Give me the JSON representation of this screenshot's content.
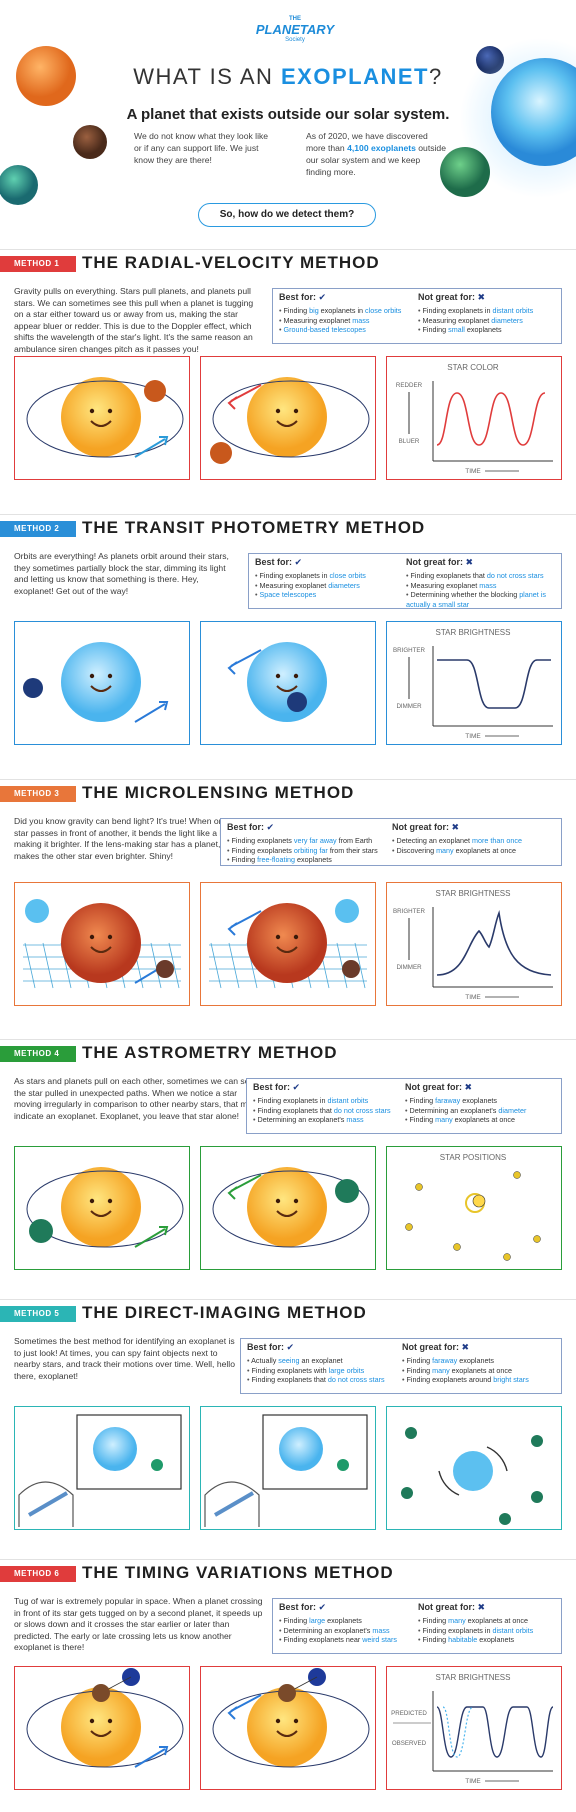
{
  "header": {
    "logo_top": "THE",
    "logo_main": "PLANETARY",
    "logo_sub": "Society",
    "title_prefix": "WHAT IS AN ",
    "title_highlight": "EXOPLANET",
    "title_suffix": "?",
    "subtitle": "A planet that exists outside our solar system.",
    "intro_left": "We do not know what they look like or if any can support life. We just know they are there!",
    "intro_right_a": "As of 2020, we have discovered more than ",
    "intro_right_hl": "4,100 exoplanets",
    "intro_right_b": " outside our solar system and we keep finding more.",
    "question": "So, how do we detect them?"
  },
  "colors": {
    "blue": "#1a8fe0",
    "red": "#e03c3c",
    "green": "#2a9d3a",
    "orange": "#e8763a",
    "teal": "#2bb5b5"
  },
  "methods": [
    {
      "tag": "METHOD 1",
      "title": "THE RADIAL-VELOCITY METHOD",
      "description": "Gravity pulls on everything. Stars pull planets, and planets pull stars. We can sometimes see this pull when a planet is tugging on a star either toward us or away from us, making the star appear bluer or redder. This is due to the Doppler effect, which shifts the wavelength of the star's light. It's the same reason an ambulance siren changes pitch as it passes you!",
      "best_label": "Best for:",
      "best": [
        {
          "a": "Finding ",
          "h": "big",
          "b": " exoplanets in ",
          "h2": "close orbits",
          "c": ""
        },
        {
          "a": "Measuring exoplanet ",
          "h": "mass",
          "b": "",
          "h2": "",
          "c": ""
        },
        {
          "a": "",
          "h": "Ground-based telescopes",
          "b": "",
          "h2": "",
          "c": ""
        }
      ],
      "not_label": "Not great for:",
      "not": [
        {
          "a": "Finding exoplanets in ",
          "h": "distant orbits",
          "b": ""
        },
        {
          "a": "Measuring exoplanet ",
          "h": "diameters",
          "b": ""
        },
        {
          "a": "Finding ",
          "h": "small",
          "b": " exoplanets"
        }
      ],
      "chart": {
        "title": "STAR COLOR",
        "y_top": "REDDER",
        "y_bottom": "BLUER",
        "x": "TIME"
      }
    },
    {
      "tag": "METHOD 2",
      "title": "THE TRANSIT PHOTOMETRY METHOD",
      "description": "Orbits are everything! As planets orbit around their stars, they sometimes partially block the star, dimming its light and letting us know that something is there. Hey, exoplanet! Get out of the way!",
      "best_label": "Best for:",
      "best": [
        {
          "a": "Finding exoplanets in ",
          "h": "close orbits",
          "b": "",
          "h2": "",
          "c": ""
        },
        {
          "a": "Measuring exoplanet ",
          "h": "diameters",
          "b": "",
          "h2": "",
          "c": ""
        },
        {
          "a": "",
          "h": "Space telescopes",
          "b": "",
          "h2": "",
          "c": ""
        }
      ],
      "not_label": "Not great for:",
      "not": [
        {
          "a": "Finding exoplanets that ",
          "h": "do not cross stars",
          "b": ""
        },
        {
          "a": "Measuring exoplanet ",
          "h": "mass",
          "b": ""
        },
        {
          "a": "Determining whether the blocking ",
          "h": "planet is actually a small star",
          "b": ""
        }
      ],
      "chart": {
        "title": "STAR BRIGHTNESS",
        "y_top": "BRIGHTER",
        "y_bottom": "DIMMER",
        "x": "TIME"
      }
    },
    {
      "tag": "METHOD 3",
      "title": "THE MICROLENSING METHOD",
      "description": "Did you know gravity can bend light? It's true! When one star passes in front of another, it bends the light like a lens, making it brighter. If the lens-making star has a planet, it makes the other star even brighter. Shiny!",
      "best_label": "Best for:",
      "best": [
        {
          "a": "Finding exoplanets ",
          "h": "very far away",
          "b": " from Earth",
          "h2": "",
          "c": ""
        },
        {
          "a": "Finding exoplanets ",
          "h": "orbiting far",
          "b": " from their stars",
          "h2": "",
          "c": ""
        },
        {
          "a": "Finding ",
          "h": "free-floating",
          "b": " exoplanets",
          "h2": "",
          "c": ""
        }
      ],
      "not_label": "Not great for:",
      "not": [
        {
          "a": "Detecting an exoplanet ",
          "h": "more than once",
          "b": ""
        },
        {
          "a": "Discovering ",
          "h": "many",
          "b": " exoplanets at once"
        }
      ],
      "chart": {
        "title": "STAR BRIGHTNESS",
        "y_top": "BRIGHTER",
        "y_bottom": "DIMMER",
        "x": "TIME"
      }
    },
    {
      "tag": "METHOD 4",
      "title": "THE ASTROMETRY METHOD",
      "description": "As stars and planets pull on each other, sometimes we can see the star pulled in unexpected paths. When we notice a star moving irregularly in comparison to other nearby stars, that might indicate an exoplanet. Exoplanet, you leave that star alone!",
      "best_label": "Best for:",
      "best": [
        {
          "a": "Finding exoplanets in ",
          "h": "distant orbits",
          "b": "",
          "h2": "",
          "c": ""
        },
        {
          "a": "Finding exoplanets that ",
          "h": "do not cross stars",
          "b": "",
          "h2": "",
          "c": ""
        },
        {
          "a": "Determining an exoplanet's ",
          "h": "mass",
          "b": "",
          "h2": "",
          "c": ""
        }
      ],
      "not_label": "Not great for:",
      "not": [
        {
          "a": "Finding ",
          "h": "faraway",
          "b": " exoplanets"
        },
        {
          "a": "Determining an exoplanet's ",
          "h": "diameter",
          "b": ""
        },
        {
          "a": "Finding ",
          "h": "many",
          "b": " exoplanets at once"
        }
      ],
      "chart": {
        "title": "STAR POSITIONS",
        "y_top": "",
        "y_bottom": "",
        "x": ""
      }
    },
    {
      "tag": "METHOD 5",
      "title": "THE DIRECT-IMAGING METHOD",
      "description": "Sometimes the best method for identifying an exoplanet is to just look! At times, you can spy faint objects next to nearby stars, and track their motions over time. Well, hello there, exoplanet!",
      "best_label": "Best for:",
      "best": [
        {
          "a": "Actually ",
          "h": "seeing",
          "b": " an exoplanet",
          "h2": "",
          "c": ""
        },
        {
          "a": "Finding exoplanets with ",
          "h": "large orbits",
          "b": "",
          "h2": "",
          "c": ""
        },
        {
          "a": "Finding exoplanets that ",
          "h": "do not cross stars",
          "b": "",
          "h2": "",
          "c": ""
        }
      ],
      "not_label": "Not great for:",
      "not": [
        {
          "a": "Finding ",
          "h": "faraway",
          "b": " exoplanets"
        },
        {
          "a": "Finding ",
          "h": "many",
          "b": " exoplanets at once"
        },
        {
          "a": "Finding exoplanets around ",
          "h": "bright stars",
          "b": ""
        }
      ],
      "chart": {
        "title": "",
        "y_top": "",
        "y_bottom": "",
        "x": ""
      }
    },
    {
      "tag": "METHOD 6",
      "title": "THE TIMING VARIATIONS METHOD",
      "description": "Tug of war is extremely popular in space. When a planet crossing in front of its star gets tugged on by a second planet, it speeds up or slows down and it crosses the star earlier or later than predicted. The early or late crossing lets us know another exoplanet is there!",
      "best_label": "Best for:",
      "best": [
        {
          "a": "Finding ",
          "h": "large",
          "b": " exoplanets",
          "h2": "",
          "c": ""
        },
        {
          "a": "Determining an exoplanet's ",
          "h": "mass",
          "b": "",
          "h2": "",
          "c": ""
        },
        {
          "a": "Finding exoplanets near ",
          "h": "weird stars",
          "b": "",
          "h2": "",
          "c": ""
        }
      ],
      "not_label": "Not great for:",
      "not": [
        {
          "a": "Finding ",
          "h": "many",
          "b": " exoplanets at once"
        },
        {
          "a": "Finding exoplanets in ",
          "h": "distant orbits",
          "b": ""
        },
        {
          "a": "Finding ",
          "h": "habitable",
          "b": " exoplanets"
        }
      ],
      "chart": {
        "title": "STAR BRIGHTNESS",
        "y_top": "PREDICTED",
        "y_bottom": "OBSERVED",
        "x": "TIME"
      }
    }
  ]
}
